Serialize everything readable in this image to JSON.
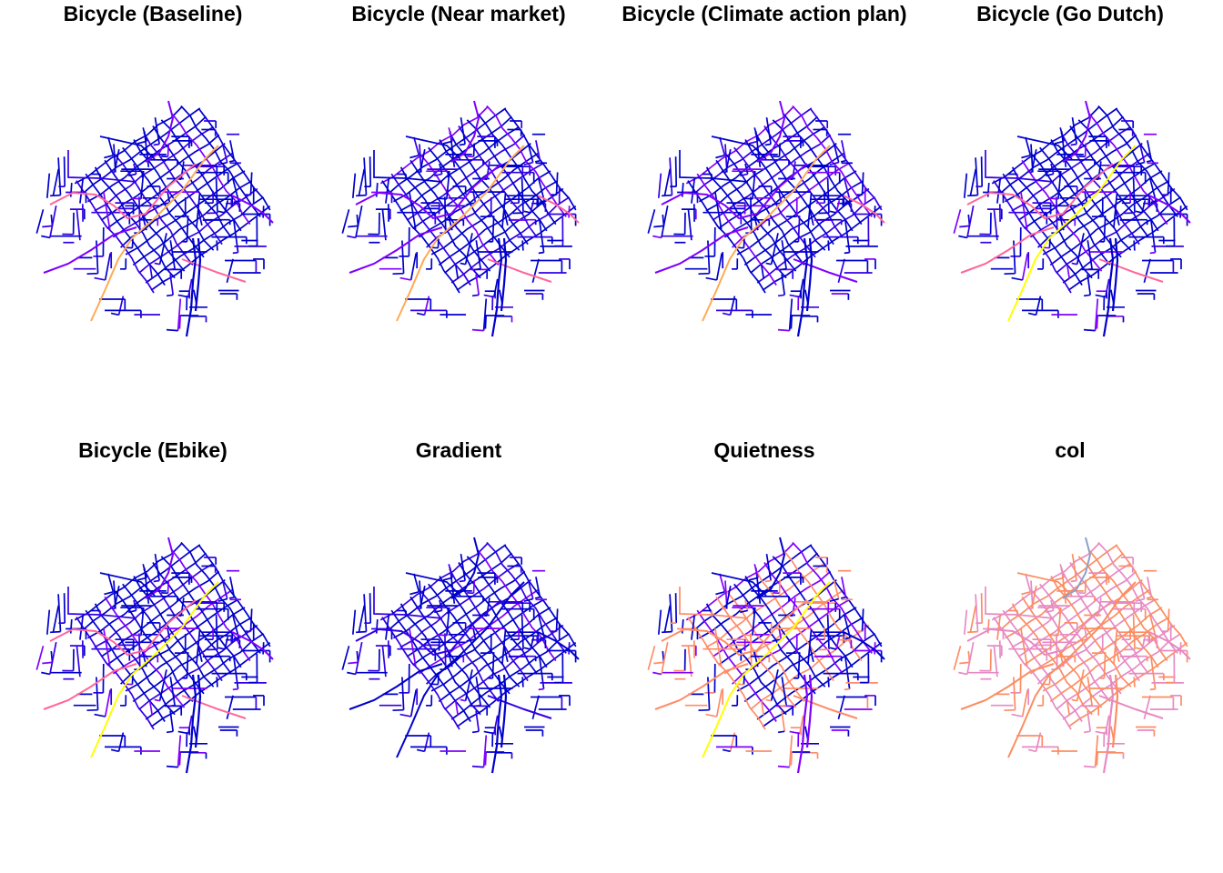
{
  "panels": [
    {
      "title": "Bicycle (Baseline)",
      "scheme": "baseline"
    },
    {
      "title": "Bicycle (Near market)",
      "scheme": "near"
    },
    {
      "title": "Bicycle (Climate action plan)",
      "scheme": "climate"
    },
    {
      "title": "Bicycle (Go Dutch)",
      "scheme": "dutch"
    },
    {
      "title": "Bicycle (Ebike)",
      "scheme": "ebike"
    },
    {
      "title": "Gradient",
      "scheme": "gradient"
    },
    {
      "title": "Quietness",
      "scheme": "quiet"
    },
    {
      "title": "col",
      "scheme": "col"
    }
  ],
  "palettes": {
    "flow": [
      "#0000CC",
      "#3300E6",
      "#7F00FF",
      "#CC33CC",
      "#FF6699",
      "#FFAA55",
      "#FFFF00"
    ],
    "quietness": [
      "#0000CC",
      "#7F00FF",
      "#FF8C69",
      "#FFFF00"
    ],
    "col": [
      "#FC8D62",
      "#E78AC3",
      "#66C2A5",
      "#8DA0CB"
    ]
  }
}
